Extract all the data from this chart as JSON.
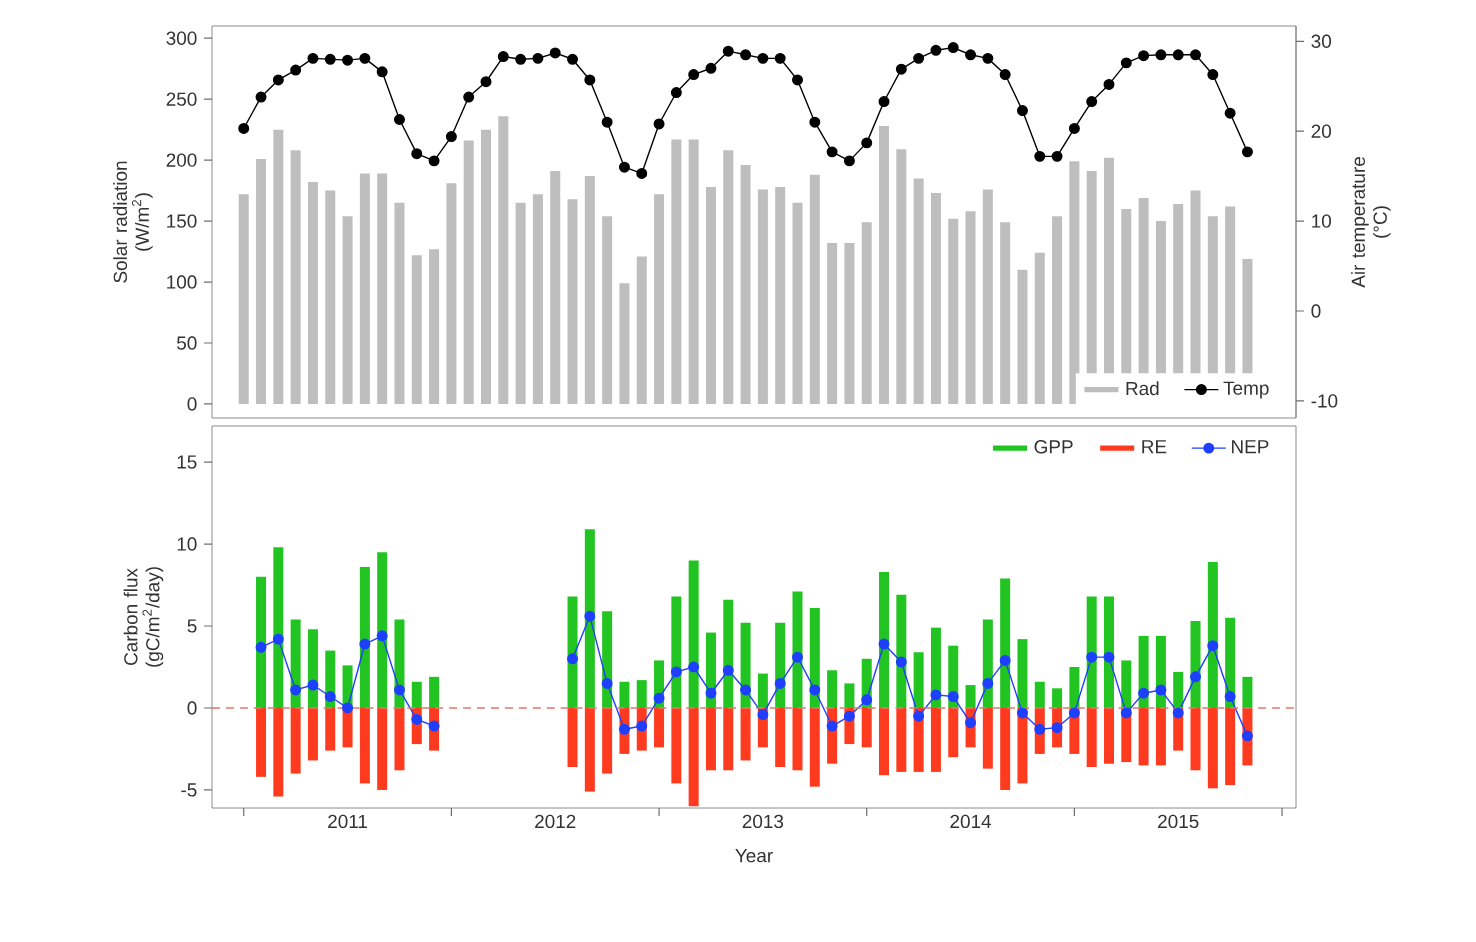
{
  "chart_data": [
    {
      "type": "bar",
      "ylabel": "Solar radiation (W/m$^{2}$)",
      "y2label": "Air temperature (°C)",
      "x": [
        "2011-01",
        "2011-02",
        "2011-03",
        "2011-04",
        "2011-05",
        "2011-06",
        "2011-07",
        "2011-08",
        "2011-09",
        "2011-10",
        "2011-11",
        "2011-12",
        "2012-01",
        "2012-02",
        "2012-03",
        "2012-04",
        "2012-05",
        "2012-06",
        "2012-07",
        "2012-08",
        "2012-09",
        "2012-10",
        "2012-11",
        "2012-12",
        "2013-01",
        "2013-02",
        "2013-03",
        "2013-04",
        "2013-05",
        "2013-06",
        "2013-07",
        "2013-08",
        "2013-09",
        "2013-10",
        "2013-11",
        "2013-12",
        "2014-01",
        "2014-02",
        "2014-03",
        "2014-04",
        "2014-05",
        "2014-06",
        "2014-07",
        "2014-08",
        "2014-09",
        "2014-10",
        "2014-11",
        "2014-12",
        "2015-01",
        "2015-02",
        "2015-03",
        "2015-04",
        "2015-05",
        "2015-06",
        "2015-07",
        "2015-08",
        "2015-09",
        "2015-10",
        "2015-11"
      ],
      "series": [
        {
          "name": "Rad",
          "type": "bar",
          "color": "#bebebe",
          "values": [
            172,
            201,
            225,
            208,
            182,
            175,
            154,
            189,
            189,
            165,
            122,
            127,
            181,
            216,
            225,
            236,
            165,
            172,
            191,
            168,
            187,
            154,
            99,
            121,
            172,
            217,
            217,
            178,
            208,
            196,
            176,
            178,
            165,
            188,
            132,
            132,
            149,
            228,
            209,
            185,
            173,
            152,
            158,
            176,
            149,
            110,
            124,
            154,
            199,
            191,
            202,
            160,
            169,
            150,
            164,
            175,
            154,
            162,
            119
          ]
        },
        {
          "name": "Temp",
          "type": "line",
          "axis": "y2",
          "color": "#000000",
          "marker": "circle",
          "values": [
            20.3,
            23.8,
            25.7,
            26.8,
            28.1,
            28.0,
            27.9,
            28.1,
            26.6,
            21.3,
            17.5,
            16.7,
            19.4,
            23.8,
            25.5,
            28.3,
            28.0,
            28.1,
            28.7,
            28.0,
            25.7,
            21.0,
            16.0,
            15.3,
            20.8,
            24.3,
            26.3,
            27.0,
            28.9,
            28.5,
            28.1,
            28.1,
            25.7,
            21.0,
            17.7,
            16.7,
            18.7,
            23.3,
            26.9,
            28.1,
            29.0,
            29.3,
            28.5,
            28.1,
            26.3,
            22.3,
            17.2,
            17.2,
            20.3,
            23.3,
            25.2,
            27.6,
            28.4,
            28.5,
            28.5,
            28.5,
            26.3,
            22.0,
            17.7
          ]
        }
      ],
      "xlim": [
        "2010-11-06",
        "2016-01-26"
      ],
      "ylim": [
        -11.5,
        310
      ],
      "yticks": [
        0,
        50,
        100,
        150,
        200,
        250,
        300
      ],
      "y2lim": [
        -11.9,
        31.7
      ],
      "y2ticks": [
        -10,
        0,
        10,
        20,
        30
      ],
      "tick_labels": "y",
      "legend": "bottom right"
    },
    {
      "type": "bar",
      "ylabel": "Carbon flux (gC/m$^{2}$/day)",
      "xlabel": "Year",
      "x": [
        "2011-02",
        "2011-03",
        "2011-04",
        "2011-05",
        "2011-06",
        "2011-07",
        "2011-08",
        "2011-09",
        "2011-10",
        "2011-11",
        "2011-12",
        "2012-01",
        "2012-02",
        "2012-03",
        "2012-04",
        "2012-05",
        "2012-06",
        "2012-07",
        "2012-08",
        "2012-09",
        "2012-10",
        "2012-11",
        "2012-12",
        "2013-01",
        "2013-02",
        "2013-03",
        "2013-04",
        "2013-05",
        "2013-06",
        "2013-07",
        "2013-08",
        "2013-09",
        "2013-10",
        "2013-11",
        "2013-12",
        "2014-01",
        "2014-02",
        "2014-03",
        "2014-04",
        "2014-05",
        "2014-06",
        "2014-07",
        "2014-08",
        "2014-09",
        "2014-10",
        "2014-11",
        "2014-12",
        "2015-01",
        "2015-02",
        "2015-03",
        "2015-04",
        "2015-05",
        "2015-06",
        "2015-07",
        "2015-08",
        "2015-09",
        "2015-10",
        "2015-11"
      ],
      "series": [
        {
          "name": "GPP",
          "type": "bar",
          "color": "#22c422",
          "values": [
            8.0,
            9.8,
            5.4,
            4.8,
            3.5,
            2.6,
            8.6,
            9.5,
            5.4,
            1.6,
            1.9,
            null,
            null,
            null,
            null,
            null,
            null,
            null,
            6.8,
            10.9,
            5.9,
            1.6,
            1.7,
            2.9,
            6.8,
            9.0,
            4.6,
            6.6,
            5.2,
            2.1,
            5.2,
            7.1,
            6.1,
            2.3,
            1.5,
            3.0,
            8.3,
            6.9,
            3.4,
            4.9,
            3.8,
            1.4,
            5.4,
            7.9,
            4.2,
            1.6,
            1.2,
            2.5,
            6.8,
            6.8,
            2.9,
            4.4,
            4.4,
            2.2,
            5.3,
            8.9,
            5.5,
            1.9
          ]
        },
        {
          "name": "RE",
          "type": "bar",
          "color": "#ff3b1f",
          "values": [
            -4.2,
            -5.4,
            -4.0,
            -3.2,
            -2.6,
            -2.4,
            -4.6,
            -5.0,
            -3.8,
            -2.2,
            -2.6,
            null,
            null,
            null,
            null,
            null,
            null,
            null,
            -3.6,
            -5.1,
            -4.0,
            -2.8,
            -2.6,
            -2.4,
            -4.6,
            -6.0,
            -3.8,
            -3.8,
            -3.2,
            -2.4,
            -3.6,
            -3.8,
            -4.8,
            -3.4,
            -2.2,
            -2.4,
            -4.1,
            -3.9,
            -3.9,
            -3.9,
            -3.0,
            -2.4,
            -3.7,
            -5.0,
            -4.6,
            -2.8,
            -2.4,
            -2.8,
            -3.6,
            -3.4,
            -3.3,
            -3.5,
            -3.5,
            -2.6,
            -3.8,
            -4.9,
            -4.7,
            -3.5
          ]
        },
        {
          "name": "NEP",
          "type": "line",
          "color": "#1f3fff",
          "marker": "circle",
          "values": [
            3.7,
            4.2,
            1.1,
            1.4,
            0.7,
            0.0,
            3.9,
            4.4,
            1.1,
            -0.7,
            -1.1,
            null,
            null,
            null,
            null,
            null,
            null,
            null,
            3.0,
            5.6,
            1.5,
            -1.3,
            -1.1,
            0.6,
            2.2,
            2.5,
            0.9,
            2.3,
            1.1,
            -0.4,
            1.5,
            3.1,
            1.1,
            -1.1,
            -0.5,
            0.5,
            3.9,
            2.8,
            -0.5,
            0.8,
            0.7,
            -0.9,
            1.5,
            2.9,
            -0.3,
            -1.3,
            -1.2,
            -0.3,
            3.1,
            3.1,
            -0.3,
            0.9,
            1.1,
            -0.3,
            1.9,
            3.8,
            0.7,
            -1.7
          ]
        }
      ],
      "xlim": [
        "2010-11-06",
        "2016-01-26"
      ],
      "xticks": [
        {
          "value": "2011-01-01",
          "label": null
        },
        {
          "value": "2012-01-01",
          "label": null
        },
        {
          "value": "2013-01-01",
          "label": null
        },
        {
          "value": "2014-01-01",
          "label": null
        },
        {
          "value": "2015-01-01",
          "label": null
        },
        {
          "value": "2016-01-01",
          "label": null
        },
        {
          "value": "2011-07-01",
          "label": "2011"
        },
        {
          "value": "2012-07-01",
          "label": "2012"
        },
        {
          "value": "2013-07-01",
          "label": "2013"
        },
        {
          "value": "2014-07-01",
          "label": "2014"
        },
        {
          "value": "2015-07-01",
          "label": "2015"
        }
      ],
      "ylim": [
        -6.1,
        17.2
      ],
      "yticks": [
        -5,
        0,
        5,
        10,
        15
      ],
      "stacked": true,
      "ref_lines": [
        {
          "axis": "y",
          "value": 0,
          "color": "#e07a6a",
          "line_style": "dashed"
        }
      ],
      "legend": "top right"
    }
  ]
}
